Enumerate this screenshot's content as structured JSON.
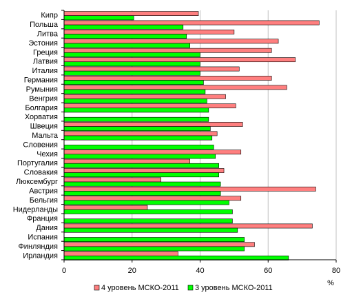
{
  "chart_data": {
    "type": "bar",
    "orientation": "horizontal",
    "categories": [
      "Кипр",
      "Польша",
      "Литва",
      "Эстония",
      "Греция",
      "Латвия",
      "Италия",
      "Германия",
      "Румыния",
      "Венгрия",
      "Болгария",
      "Хорватия",
      "Швеция",
      "Мальта",
      "Словения",
      "Чехия",
      "Португалия",
      "Словакия",
      "Люксембург",
      "Австрия",
      "Бельгия",
      "Нидерланды",
      "Франция",
      "Дания",
      "Испания",
      "Финляндия",
      "Ирландия"
    ],
    "series": [
      {
        "name": "4 уровень МСКО-2011",
        "color": "#ff7f7f",
        "values": [
          39.5,
          75,
          50,
          63,
          61,
          68,
          51.5,
          61,
          65.5,
          47.5,
          50.5,
          null,
          52.5,
          45,
          null,
          52,
          37,
          47,
          28.5,
          74,
          52,
          24.5,
          null,
          73,
          null,
          56,
          33.5
        ]
      },
      {
        "name": "3 уровень МСКО-2011",
        "color": "#00ff00",
        "values": [
          20.5,
          35,
          36,
          37,
          40,
          40,
          40,
          41,
          41.5,
          42,
          42.5,
          42.5,
          43,
          43.5,
          44,
          44.5,
          45.5,
          45.5,
          46,
          46,
          48.5,
          49.5,
          49.5,
          51,
          53,
          53,
          66
        ]
      }
    ],
    "xlim": [
      0,
      80
    ],
    "xticks": [
      "0",
      "20",
      "40",
      "60",
      "80"
    ],
    "xlabel": "%",
    "gridlines": [
      20,
      40,
      60,
      80
    ],
    "legend_position": "bottom"
  }
}
